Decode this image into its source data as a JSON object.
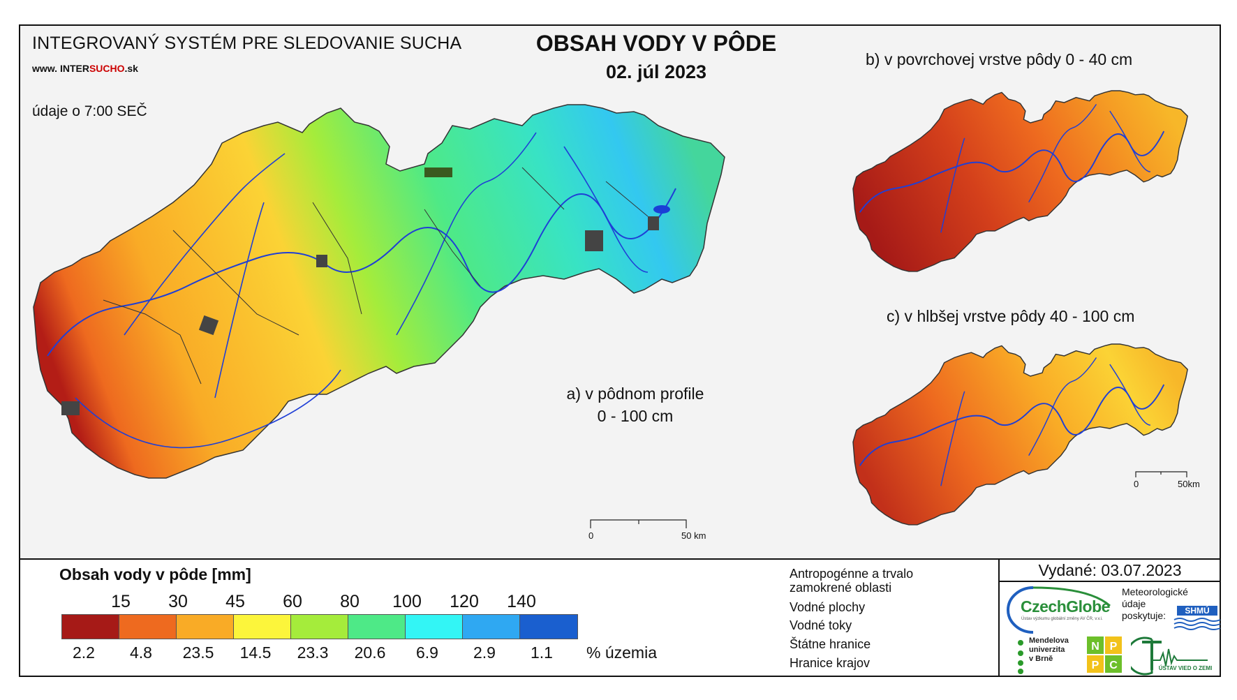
{
  "header": {
    "system_title": "INTEGROVANÝ SYSTÉM PRE SLEDOVANIE SUCHA",
    "website_prefix": "www.",
    "website_main": "INTER",
    "website_highlight": "SUCHO",
    "website_suffix": ".sk",
    "time_note": "údaje o 7:00 SEČ",
    "map_title": "OBSAH VODY V PÔDE",
    "map_date": "02. júl 2023"
  },
  "panels": {
    "a_line1": "a) v pôdnom profile",
    "a_line2": "0 - 100 cm",
    "b": "b) v povrchovej vrstve pôdy 0 - 40 cm",
    "c": "c) v hlbšej vrstve pôdy 40 - 100 cm"
  },
  "scale_bars": {
    "main_start": "0",
    "main_end": "50 km",
    "small_start": "0",
    "small_end": "50km"
  },
  "legend": {
    "title": "Obsah vody v pôde  [mm]",
    "thresholds": [
      "15",
      "30",
      "45",
      "60",
      "80",
      "100",
      "120",
      "140"
    ],
    "classes": [
      {
        "color": "#a61a17",
        "percent": "2.2"
      },
      {
        "color": "#ee6a1f",
        "percent": "4.8"
      },
      {
        "color": "#f9ab26",
        "percent": "23.5"
      },
      {
        "color": "#fcf53b",
        "percent": "14.5"
      },
      {
        "color": "#a5ec3b",
        "percent": "23.3"
      },
      {
        "color": "#4ee987",
        "percent": "20.6"
      },
      {
        "color": "#33f5f5",
        "percent": "6.9"
      },
      {
        "color": "#2fa8f2",
        "percent": "2.9"
      },
      {
        "color": "#1a5fcf",
        "percent": "1.1"
      }
    ],
    "percent_label": "% územia"
  },
  "symbols": {
    "anthropogenic_line1": "Antropogénne a trvalo",
    "anthropogenic_line2": "zamokrené oblasti",
    "water_bodies": "Vodné plochy",
    "streams": "Vodné toky",
    "state_border": "Štátne hranice",
    "region_border": "Hranice krajov"
  },
  "footer": {
    "issued": "Vydané: 03.07.2023",
    "czechglobe": "CzechGlobe",
    "czechglobe_sub": "Ústav výzkumu globální změny AV ČR, v.v.i.",
    "meteo_line1": "Meteorologické",
    "meteo_line2": "údaje",
    "meteo_line3": "poskytuje:",
    "shmu": "SHMÚ",
    "mendel_line1": "Mendelova",
    "mendel_line2": "univerzita",
    "mendel_line3": "v Brně",
    "nppc_n": "N",
    "nppc_p1": "P",
    "nppc_p2": "P",
    "nppc_c": "C",
    "uvz": "ÚSTAV VIED O ZEMI"
  }
}
